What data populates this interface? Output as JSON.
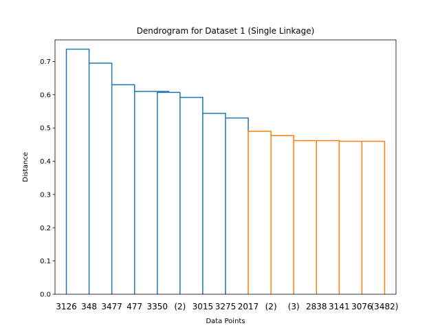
{
  "chart_data": {
    "type": "dendrogram",
    "title": "Dendrogram for Dataset 1 (Single Linkage)",
    "xlabel": "Data Points",
    "ylabel": "Distance",
    "ylim": [
      0,
      0.765
    ],
    "yticks": [
      "0.0",
      "0.1",
      "0.2",
      "0.3",
      "0.4",
      "0.5",
      "0.6",
      "0.7"
    ],
    "leaves": [
      "3126",
      "348",
      "3477",
      "477",
      "3350",
      "(2)",
      "3015",
      "3275",
      "2017",
      "(2)",
      "(3)",
      "2838",
      "3141",
      "3076",
      "(3482)"
    ],
    "grid": false,
    "colors": {
      "upper": "#1f77b4",
      "lower": "#ff7f0e"
    },
    "links": [
      {
        "left": [
          0,
          0.0
        ],
        "right": [
          1,
          0.695
        ],
        "height": 0.737,
        "color": "upper"
      },
      {
        "left": [
          1,
          0.0
        ],
        "right": [
          2,
          0.63
        ],
        "height": 0.695,
        "color": "upper"
      },
      {
        "left": [
          2,
          0.0
        ],
        "right": [
          3,
          0.61
        ],
        "height": 0.63,
        "color": "upper"
      },
      {
        "left": [
          3,
          0.0
        ],
        "right": [
          4.5,
          0.607
        ],
        "height": 0.61,
        "color": "upper"
      },
      {
        "left": [
          4,
          0.0
        ],
        "right": [
          5,
          0.592
        ],
        "height": 0.607,
        "color": "upper"
      },
      {
        "left": [
          5,
          0.0
        ],
        "right": [
          6,
          0.544
        ],
        "height": 0.592,
        "color": "upper"
      },
      {
        "left": [
          6,
          0.0
        ],
        "right": [
          7,
          0.53
        ],
        "height": 0.544,
        "color": "upper"
      },
      {
        "left": [
          7,
          0.0
        ],
        "right": [
          8,
          0.49
        ],
        "height": 0.53,
        "color": "upper"
      },
      {
        "left": [
          8,
          0.0
        ],
        "right": [
          9,
          0.477
        ],
        "height": 0.49,
        "color": "lower"
      },
      {
        "left": [
          9,
          0.0
        ],
        "right": [
          10,
          0.462
        ],
        "height": 0.477,
        "color": "lower"
      },
      {
        "left": [
          10,
          0.0
        ],
        "right": [
          11,
          0.462
        ],
        "height": 0.462,
        "color": "lower"
      },
      {
        "left": [
          11,
          0.0
        ],
        "right": [
          12,
          0.46
        ],
        "height": 0.462,
        "color": "lower"
      },
      {
        "left": [
          12,
          0.0
        ],
        "right": [
          13,
          0.46
        ],
        "height": 0.46,
        "color": "lower"
      },
      {
        "left": [
          13,
          0.0
        ],
        "right": [
          14,
          0.0
        ],
        "height": 0.46,
        "color": "lower"
      }
    ]
  }
}
